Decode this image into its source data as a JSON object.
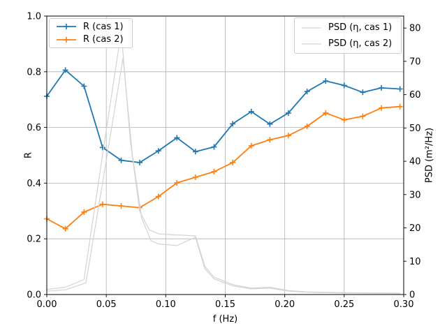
{
  "figure": {
    "background": "#ffffff",
    "grid_color": "#b0b0b0",
    "spine_color": "#000000",
    "psd_line_color": "#d3d3d3"
  },
  "chart_data": {
    "type": "line",
    "title": "",
    "xlabel": "f (Hz)",
    "ylabel_left": "R",
    "ylabel_right": "PSD (m²/Hz)",
    "x_range": [
      0.0,
      0.3
    ],
    "y_left_range": [
      0.0,
      1.0
    ],
    "y_right_range": [
      0.0,
      83.6
    ],
    "grid": true,
    "legend_positions": [
      "upper-left",
      "upper-right"
    ],
    "x_ticks": [
      0.0,
      0.05,
      0.1,
      0.15,
      0.2,
      0.25,
      0.3
    ],
    "x_tick_labels": [
      "0.00",
      "0.05",
      "0.10",
      "0.15",
      "0.20",
      "0.25",
      "0.30"
    ],
    "y_left_ticks": [
      0.0,
      0.2,
      0.4,
      0.6,
      0.8,
      1.0
    ],
    "y_left_tick_labels": [
      "0.0",
      "0.2",
      "0.4",
      "0.6",
      "0.8",
      "1.0"
    ],
    "y_right_ticks": [
      0,
      10,
      20,
      30,
      40,
      50,
      60,
      70,
      80
    ],
    "y_right_tick_labels": [
      "0",
      "10",
      "20",
      "30",
      "40",
      "50",
      "60",
      "70",
      "80"
    ],
    "series": [
      {
        "name": "R (cas 1)",
        "axis": "left",
        "color": "#1f77b4",
        "marker": "plus",
        "x": [
          0.0,
          0.0156,
          0.0313,
          0.0469,
          0.0625,
          0.0781,
          0.0938,
          0.1094,
          0.125,
          0.1406,
          0.1563,
          0.1719,
          0.1875,
          0.2031,
          0.2188,
          0.2344,
          0.25,
          0.2656,
          0.2813,
          0.2969
        ],
        "y": [
          0.712,
          0.806,
          0.748,
          0.528,
          0.482,
          0.474,
          0.516,
          0.563,
          0.513,
          0.53,
          0.613,
          0.657,
          0.612,
          0.652,
          0.729,
          0.767,
          0.751,
          0.726,
          0.742,
          0.738
        ]
      },
      {
        "name": "R (cas 2)",
        "axis": "left",
        "color": "#ff7f0e",
        "marker": "plus",
        "x": [
          0.0,
          0.0156,
          0.0313,
          0.0469,
          0.0625,
          0.0781,
          0.0938,
          0.1094,
          0.125,
          0.1406,
          0.1563,
          0.1719,
          0.1875,
          0.2031,
          0.2188,
          0.2344,
          0.25,
          0.2656,
          0.2813,
          0.2969
        ],
        "y": [
          0.272,
          0.236,
          0.296,
          0.324,
          0.318,
          0.312,
          0.352,
          0.401,
          0.421,
          0.441,
          0.474,
          0.534,
          0.556,
          0.571,
          0.604,
          0.652,
          0.627,
          0.64,
          0.67,
          0.675
        ]
      },
      {
        "name": "PSD (η, cas 1)",
        "axis": "right",
        "color": "#d3d3d3",
        "marker": "none",
        "x": [
          0.0,
          0.0156,
          0.0313,
          0.0469,
          0.0625,
          0.0703,
          0.0781,
          0.0859,
          0.0938,
          0.1094,
          0.125,
          0.1328,
          0.1406,
          0.1563,
          0.1719,
          0.1875,
          0.2031,
          0.2188,
          0.2344,
          0.25,
          0.2656,
          0.2813,
          0.2969
        ],
        "y": [
          1.5,
          2.2,
          4.5,
          42.0,
          79.0,
          46.0,
          25.0,
          19.5,
          18.2,
          17.9,
          17.6,
          8.5,
          5.2,
          3.0,
          1.9,
          2.2,
          1.2,
          0.8,
          0.65,
          0.55,
          0.5,
          0.45,
          0.4
        ]
      },
      {
        "name": "PSD (η, cas 2)",
        "axis": "right",
        "color": "#d3d3d3",
        "marker": "none",
        "x": [
          0.0,
          0.0156,
          0.0329,
          0.0485,
          0.0641,
          0.0719,
          0.0797,
          0.0875,
          0.0938,
          0.1094,
          0.125,
          0.1328,
          0.1406,
          0.1563,
          0.1719,
          0.1875,
          0.2031,
          0.2188,
          0.2344,
          0.25,
          0.2656,
          0.2813,
          0.2969
        ],
        "y": [
          1.0,
          1.4,
          3.5,
          37.0,
          71.0,
          42.0,
          23.0,
          16.2,
          15.2,
          14.7,
          17.2,
          7.8,
          4.7,
          2.6,
          1.7,
          1.9,
          1.0,
          0.7,
          0.55,
          0.45,
          0.4,
          0.35,
          0.3
        ]
      }
    ],
    "legends": [
      {
        "entries": [
          {
            "label": "R (cas 1)",
            "color": "#1f77b4",
            "marker": "plus"
          },
          {
            "label": "R (cas 2)",
            "color": "#ff7f0e",
            "marker": "plus"
          }
        ]
      },
      {
        "entries": [
          {
            "label": "PSD (η, cas 1)",
            "color": "#d3d3d3",
            "marker": "none"
          },
          {
            "label": "PSD (η, cas 2)",
            "color": "#d3d3d3",
            "marker": "none"
          }
        ]
      }
    ]
  }
}
